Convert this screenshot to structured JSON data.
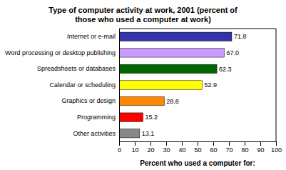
{
  "chart_data": {
    "type": "bar",
    "orientation": "horizontal",
    "title": "Type of computer activity at work,  2001 (percent of\nthose who used a computer at work)",
    "categories": [
      "Internet or e-mail",
      "Word processing or desktop publishing",
      "Spreadsheets or databases",
      "Calendar or scheduling",
      "Graphics or design",
      "Programming",
      "Other activities"
    ],
    "values": [
      71.8,
      67.0,
      62.3,
      52.9,
      28.8,
      15.2,
      13.1
    ],
    "value_labels": [
      "71.8",
      "67.0",
      "62.3",
      "52.9",
      "28.8",
      "15.2",
      "13.1"
    ],
    "colors": [
      "#3333AA",
      "#CC99FF",
      "#006600",
      "#FFFF00",
      "#FF8800",
      "#FF0000",
      "#888888"
    ],
    "xlabel": "Percent who used a computer for:",
    "xlim": [
      0,
      100
    ],
    "xticks": [
      0,
      10,
      20,
      30,
      40,
      50,
      60,
      70,
      80,
      90,
      100
    ],
    "data_labels": true,
    "grid": false
  }
}
